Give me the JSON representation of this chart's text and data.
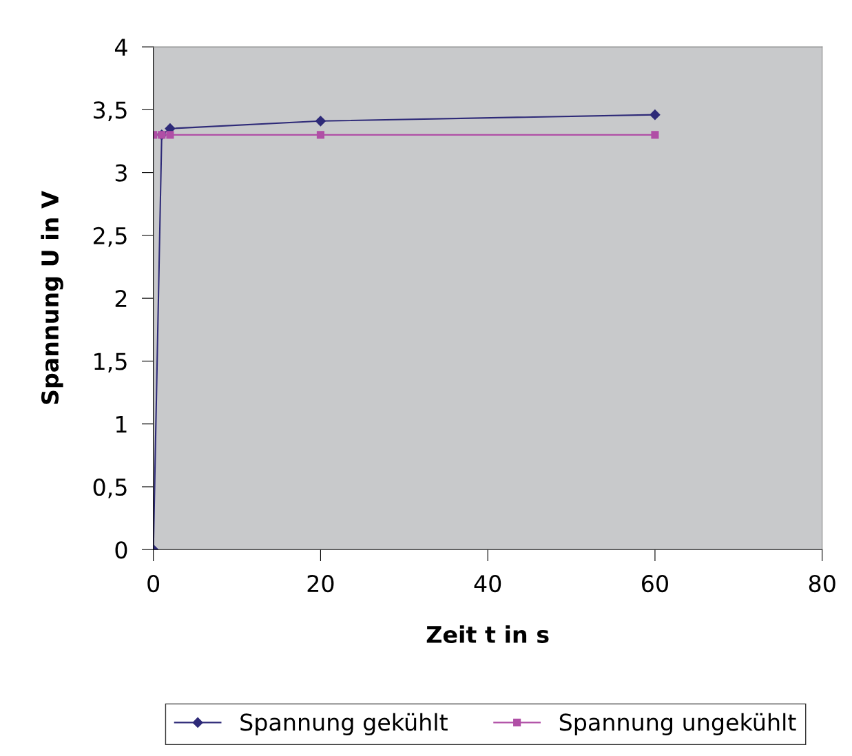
{
  "chart_data": {
    "type": "line",
    "xlabel": "Zeit t in s",
    "ylabel": "Spannung U in V",
    "xlim": [
      0,
      80
    ],
    "xticks": [
      0,
      20,
      40,
      60,
      80
    ],
    "ylim": [
      0,
      4
    ],
    "yticks": [
      0,
      {
        "value": 0.5,
        "label": "0,5"
      },
      1,
      {
        "value": 1.5,
        "label": "1,5"
      },
      2,
      {
        "value": 2.5,
        "label": "2,5"
      },
      3,
      {
        "value": 3.5,
        "label": "3,5"
      },
      4
    ],
    "grid": false,
    "legend": "bottom",
    "series": [
      {
        "name": "Spannung gekühlt",
        "color": "#2e2a78",
        "marker": "diamond",
        "x": [
          0,
          1,
          2,
          20,
          60
        ],
        "values": [
          0,
          3.3,
          3.35,
          3.41,
          3.46
        ]
      },
      {
        "name": "Spannung ungekühlt",
        "color": "#b04fa6",
        "marker": "square",
        "x": [
          0,
          1,
          2,
          20,
          60
        ],
        "values": [
          3.3,
          3.3,
          3.3,
          3.3,
          3.3
        ]
      }
    ]
  }
}
